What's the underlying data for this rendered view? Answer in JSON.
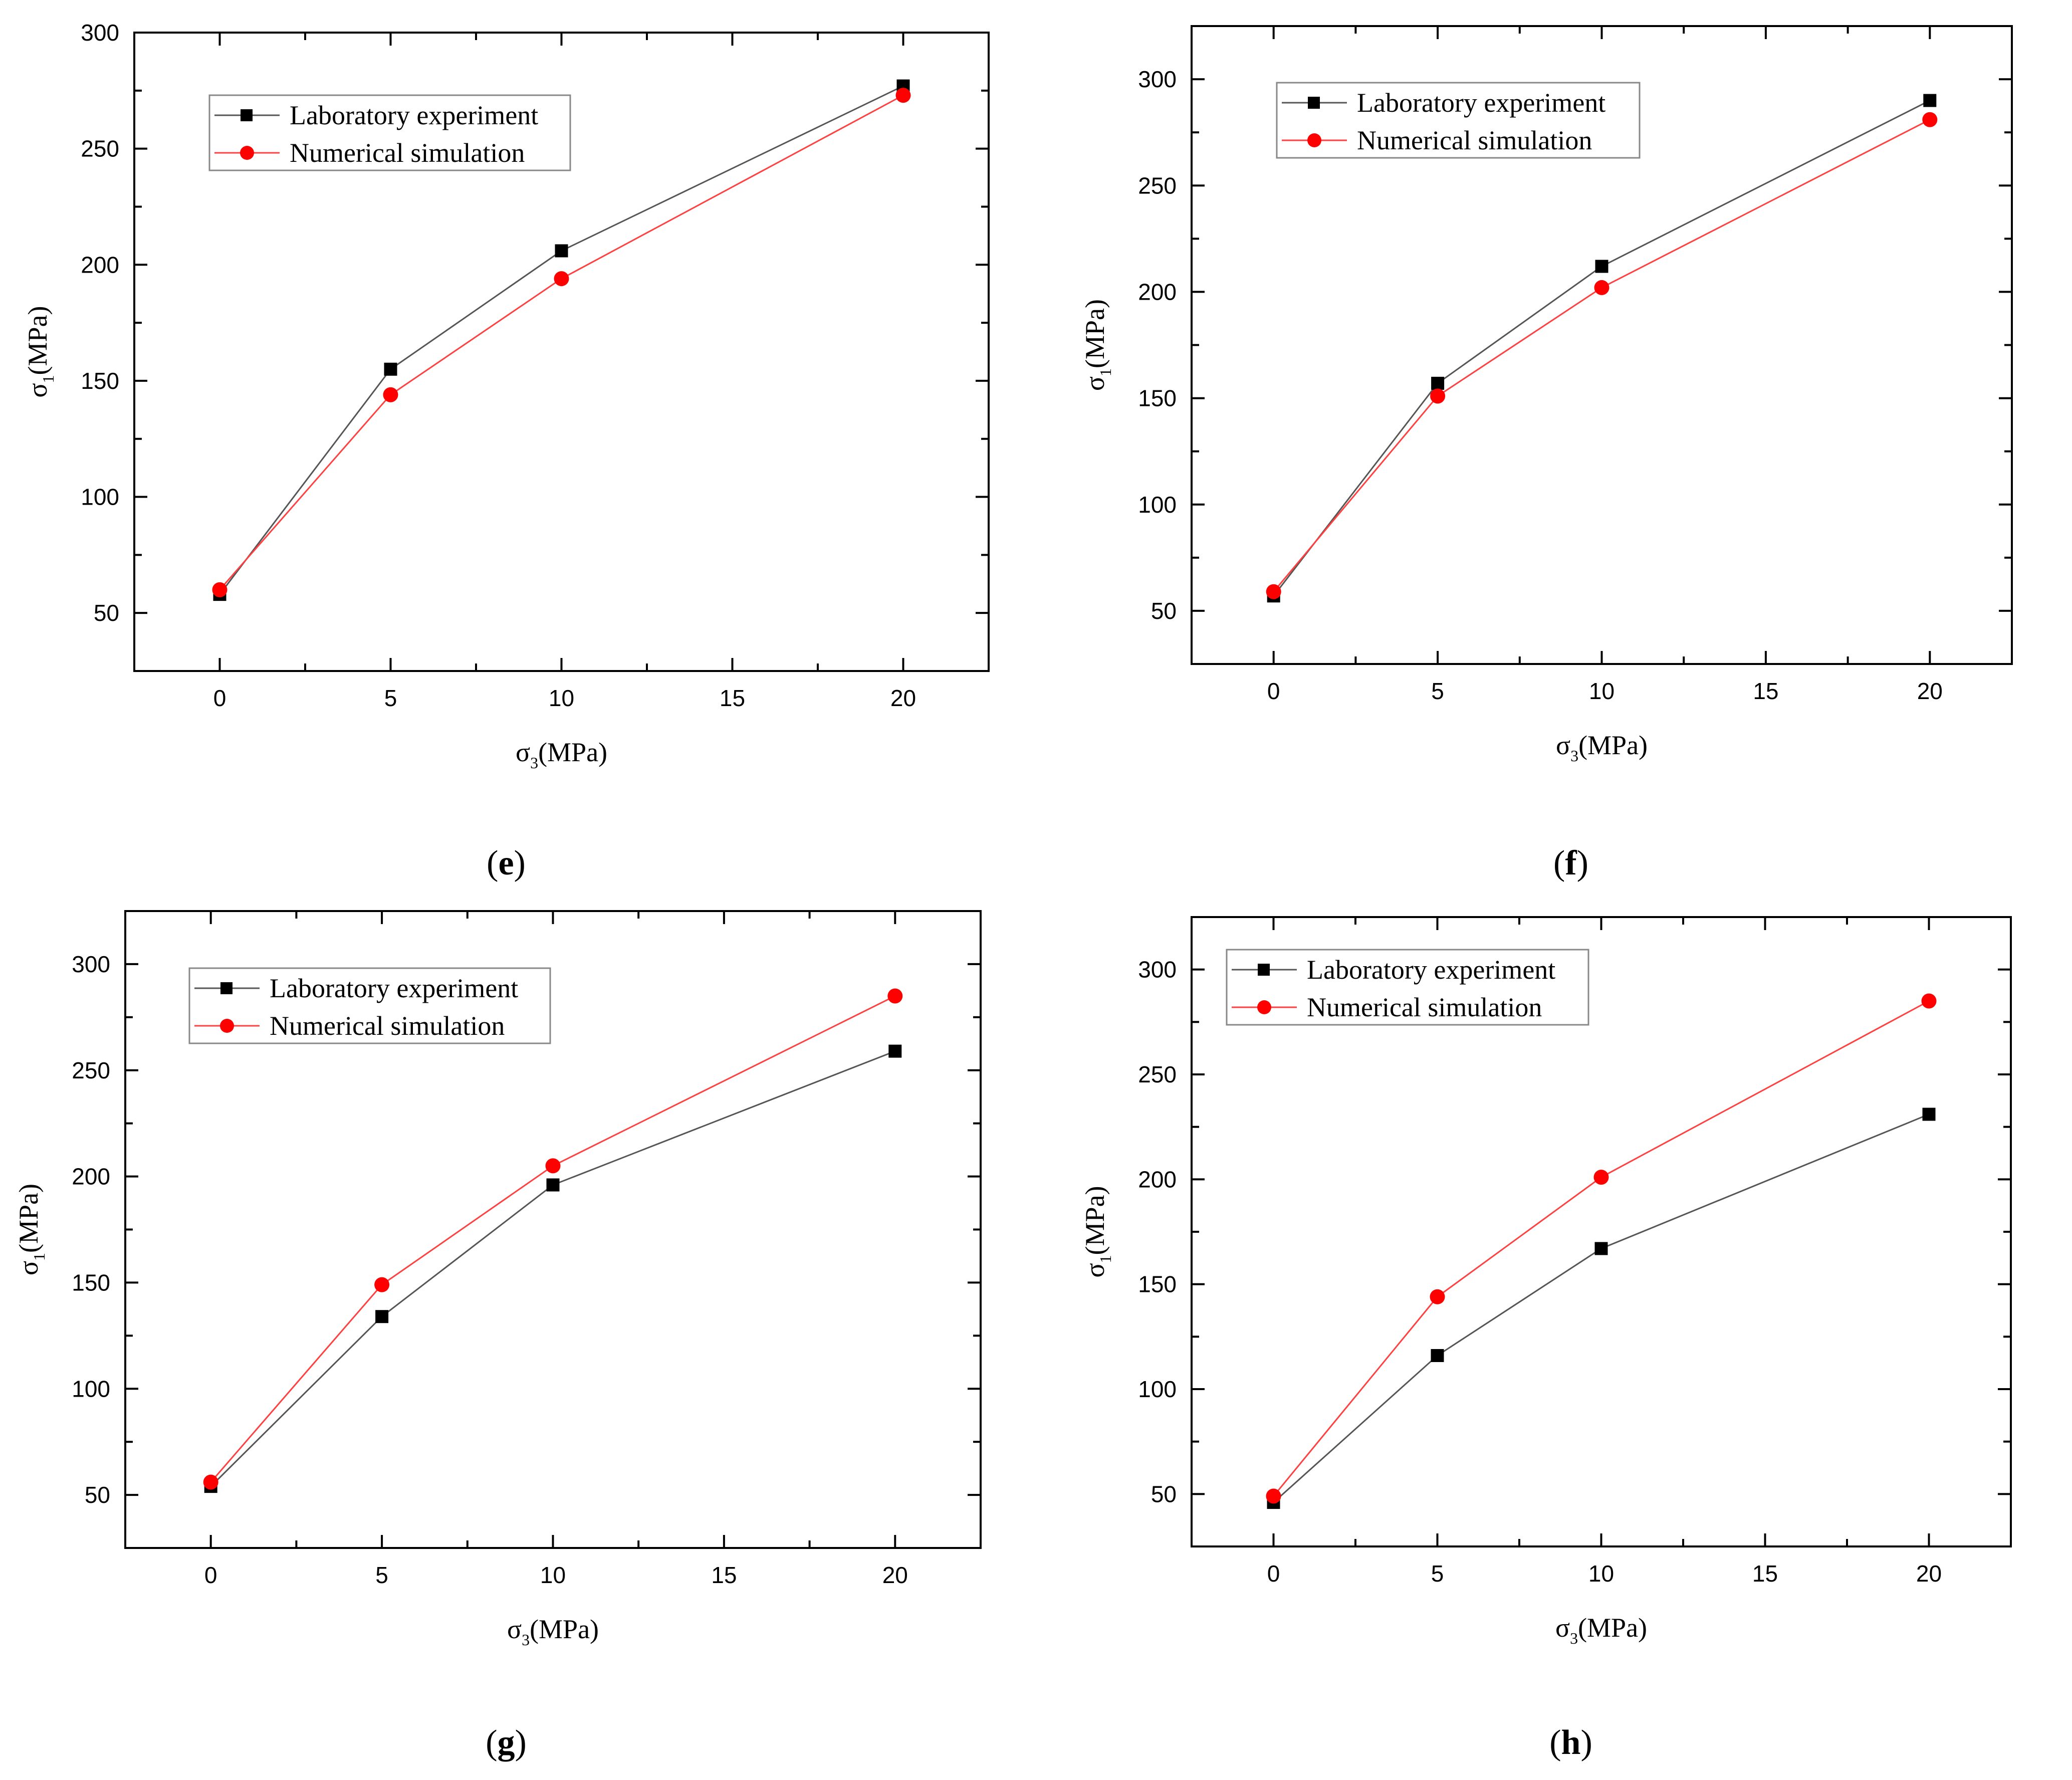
{
  "colors": {
    "lab": "#000000",
    "lab_line": "#555555",
    "sim": "#ff0000",
    "sim_line": "#ff4040"
  },
  "chart_data": [
    {
      "type": "line",
      "panel": "e",
      "caption_open": "(",
      "caption_letter": "e",
      "caption_close": ")",
      "xlabel": "σ",
      "xlabel_sub": "3",
      "xlabel_unit": "(MPa)",
      "ylabel": "σ",
      "ylabel_sub": "1",
      "ylabel_unit": "(MPa)",
      "xlim": [
        -2.5,
        22.5
      ],
      "ylim": [
        25,
        300
      ],
      "xticks": [
        0,
        5,
        10,
        15,
        20
      ],
      "yticks": [
        50,
        100,
        150,
        200,
        250,
        300
      ],
      "legend_position": "top-left",
      "series": [
        {
          "name": "Laboratory experiment",
          "marker": "square",
          "x": [
            0,
            5,
            10,
            20
          ],
          "values": [
            58,
            155,
            206,
            277
          ]
        },
        {
          "name": "Numerical simulation",
          "marker": "circle",
          "x": [
            0,
            5,
            10,
            20
          ],
          "values": [
            60,
            144,
            194,
            273
          ]
        }
      ]
    },
    {
      "type": "line",
      "panel": "f",
      "caption_open": "(",
      "caption_letter": "f",
      "caption_close": ")",
      "xlabel": "σ",
      "xlabel_sub": "3",
      "xlabel_unit": "(MPa)",
      "ylabel": "σ",
      "ylabel_sub": "1",
      "ylabel_unit": "(MPa)",
      "xlim": [
        -2.5,
        22.5
      ],
      "ylim": [
        25,
        325
      ],
      "xticks": [
        0,
        5,
        10,
        15,
        20
      ],
      "yticks": [
        50,
        100,
        150,
        200,
        250,
        300
      ],
      "legend_position": "top-left",
      "series": [
        {
          "name": "Laboratory experiment",
          "marker": "square",
          "x": [
            0,
            5,
            10,
            20
          ],
          "values": [
            57,
            157,
            212,
            290
          ]
        },
        {
          "name": "Numerical simulation",
          "marker": "circle",
          "x": [
            0,
            5,
            10,
            20
          ],
          "values": [
            59,
            151,
            202,
            281
          ]
        }
      ]
    },
    {
      "type": "line",
      "panel": "g",
      "caption_open": "(",
      "caption_letter": "g",
      "caption_close": ")",
      "xlabel": "σ",
      "xlabel_sub": "3",
      "xlabel_unit": "(MPa)",
      "ylabel": "σ",
      "ylabel_sub": "1",
      "ylabel_unit": "(MPa)",
      "xlim": [
        -2.5,
        22.5
      ],
      "ylim": [
        25,
        325
      ],
      "xticks": [
        0,
        5,
        10,
        15,
        20
      ],
      "yticks": [
        50,
        100,
        150,
        200,
        250,
        300
      ],
      "legend_position": "top-left",
      "series": [
        {
          "name": "Laboratory experiment",
          "marker": "square",
          "x": [
            0,
            5,
            10,
            20
          ],
          "values": [
            54,
            134,
            196,
            259
          ]
        },
        {
          "name": "Numerical simulation",
          "marker": "circle",
          "x": [
            0,
            5,
            10,
            20
          ],
          "values": [
            56,
            149,
            205,
            285
          ]
        }
      ]
    },
    {
      "type": "line",
      "panel": "h",
      "caption_open": "(",
      "caption_letter": "h",
      "caption_close": ")",
      "xlabel": "σ",
      "xlabel_sub": "3",
      "xlabel_unit": "(MPa)",
      "ylabel": "σ",
      "ylabel_sub": "1",
      "ylabel_unit": "(MPa)",
      "xlim": [
        -2.5,
        22.5
      ],
      "ylim": [
        25,
        325
      ],
      "xticks": [
        0,
        5,
        10,
        15,
        20
      ],
      "yticks": [
        50,
        100,
        150,
        200,
        250,
        300
      ],
      "legend_position": "top-left",
      "series": [
        {
          "name": "Laboratory experiment",
          "marker": "square",
          "x": [
            0,
            5,
            10,
            20
          ],
          "values": [
            46,
            116,
            167,
            231
          ]
        },
        {
          "name": "Numerical simulation",
          "marker": "circle",
          "x": [
            0,
            5,
            10,
            20
          ],
          "values": [
            49,
            144,
            201,
            285
          ]
        }
      ]
    }
  ]
}
